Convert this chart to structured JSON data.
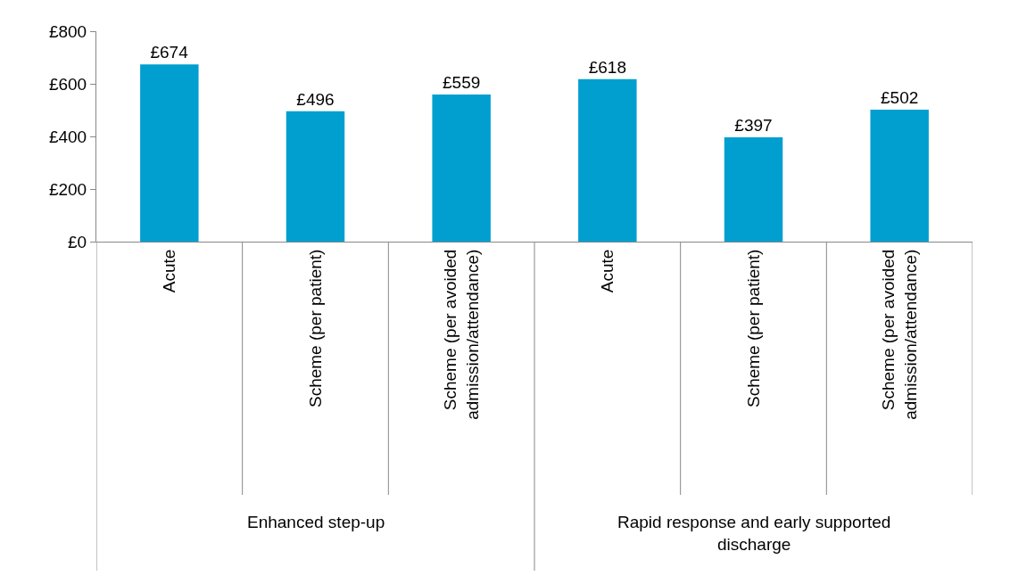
{
  "chart_data": {
    "type": "bar",
    "categories": [
      "Acute",
      "Scheme (per patient)",
      "Scheme (per avoided admission/attendance)",
      "Acute",
      "Scheme (per patient)",
      "Scheme (per avoided admission/attendance)"
    ],
    "values": [
      674,
      496,
      559,
      618,
      397,
      502
    ],
    "value_labels": [
      "£674",
      "£496",
      "£559",
      "£618",
      "£397",
      "£502"
    ],
    "color": "#009fd0",
    "ylim": [
      0,
      800
    ],
    "yticks": [
      {
        "value": 0,
        "label": "£0"
      },
      {
        "value": 200,
        "label": "£200"
      },
      {
        "value": 400,
        "label": "£400"
      },
      {
        "value": 600,
        "label": "£600"
      },
      {
        "value": 800,
        "label": "£800"
      }
    ],
    "grid": false,
    "annotations": [
      "Enhanced step-up",
      "Rapid response and early supported discharge"
    ]
  }
}
